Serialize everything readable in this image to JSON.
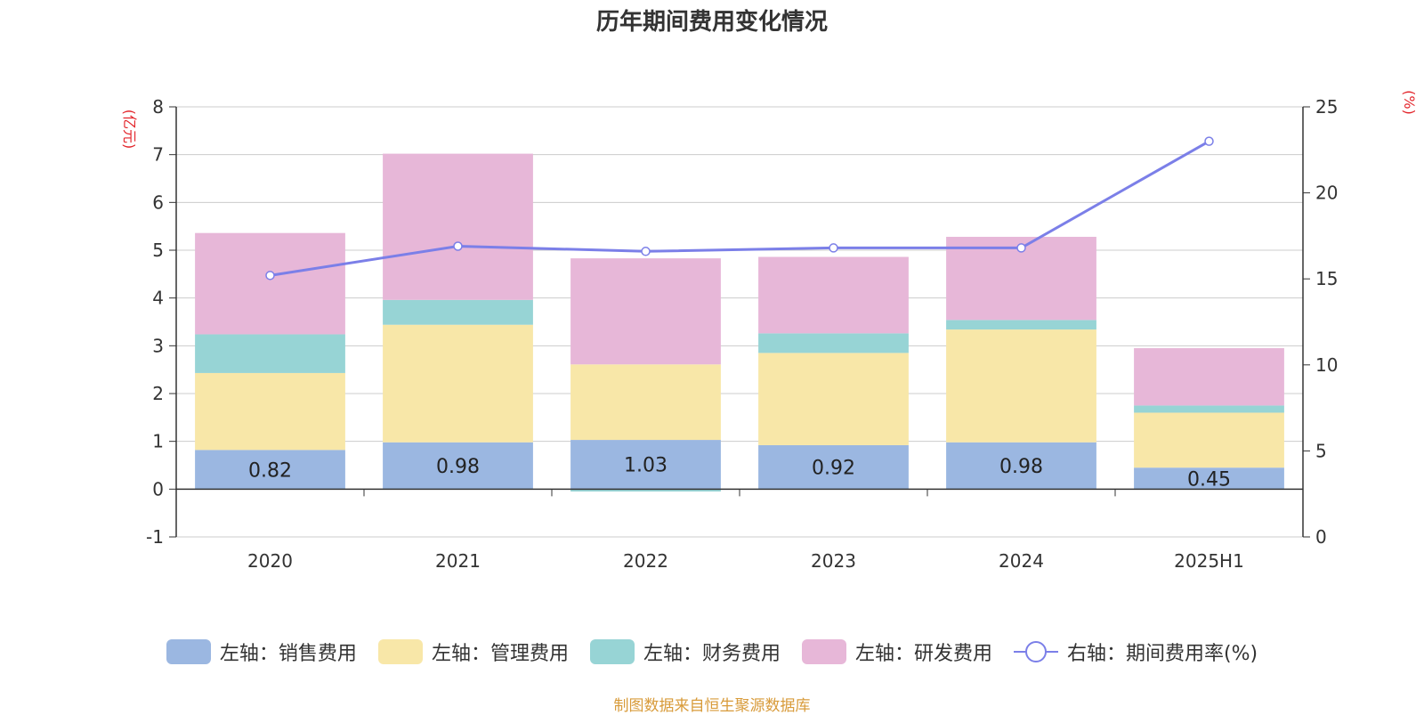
{
  "chart_data": {
    "type": "bar",
    "title": "历年期间费用变化情况",
    "categories": [
      "2020",
      "2021",
      "2022",
      "2023",
      "2024",
      "2025H1"
    ],
    "left_axis": {
      "unit": "(亿元)",
      "ylim": [
        -1,
        8
      ],
      "ticks": [
        "-1",
        "0",
        "1",
        "2",
        "3",
        "4",
        "5",
        "6",
        "7",
        "8"
      ]
    },
    "right_axis": {
      "unit": "(%)",
      "ylim": [
        0,
        25
      ],
      "ticks": [
        "0",
        "5",
        "10",
        "15",
        "20",
        "25"
      ]
    },
    "stacked": true,
    "series": [
      {
        "name": "左轴：销售费用",
        "type": "bar",
        "axis": "left",
        "color": "#9bb7e1",
        "values": [
          0.82,
          0.98,
          1.03,
          0.92,
          0.98,
          0.45
        ],
        "labels": [
          "0.82",
          "0.98",
          "1.03",
          "0.92",
          "0.98",
          "0.45"
        ]
      },
      {
        "name": "左轴：管理费用",
        "type": "bar",
        "axis": "left",
        "color": "#f8e7a8",
        "values": [
          1.61,
          2.46,
          1.58,
          1.93,
          2.36,
          1.15
        ]
      },
      {
        "name": "左轴：财务费用",
        "type": "bar",
        "axis": "left",
        "color": "#97d4d5",
        "values": [
          0.81,
          0.52,
          -0.05,
          0.41,
          0.2,
          0.15
        ]
      },
      {
        "name": "左轴：研发费用",
        "type": "bar",
        "axis": "left",
        "color": "#e7b7d8",
        "values": [
          2.12,
          3.06,
          2.22,
          1.6,
          1.74,
          1.2
        ]
      },
      {
        "name": "右轴：期间费用率(%)",
        "type": "line",
        "axis": "right",
        "color": "#7b7fe8",
        "values": [
          15.2,
          16.9,
          16.6,
          16.8,
          16.8,
          23.0
        ]
      }
    ],
    "legend_position": "bottom",
    "grid": true
  },
  "source_note": "制图数据来自恒生聚源数据库"
}
